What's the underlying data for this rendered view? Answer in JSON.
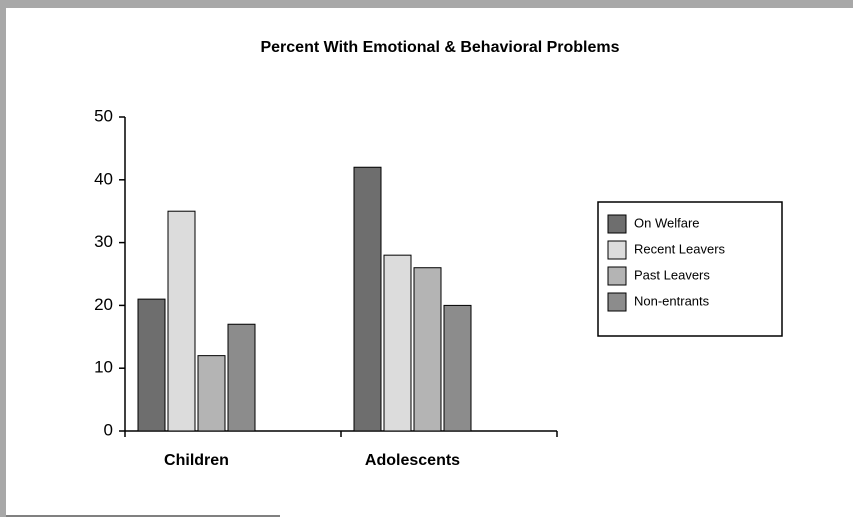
{
  "chart_data": {
    "type": "bar",
    "title": "Percent With Emotional & Behavioral Problems",
    "categories": [
      "Children",
      "Adolescents"
    ],
    "series": [
      {
        "name": "On Welfare",
        "color": "#6e6e6e",
        "values": [
          21,
          42
        ]
      },
      {
        "name": "Recent Leavers",
        "color": "#dcdcdc",
        "values": [
          35,
          28
        ]
      },
      {
        "name": "Past Leavers",
        "color": "#b4b4b4",
        "values": [
          12,
          26
        ]
      },
      {
        "name": "Non-entrants",
        "color": "#8c8c8c",
        "values": [
          17,
          20
        ]
      }
    ],
    "ylim": [
      0,
      50
    ],
    "yticks": [
      0,
      10,
      20,
      30,
      40,
      50
    ],
    "legend": "right"
  }
}
